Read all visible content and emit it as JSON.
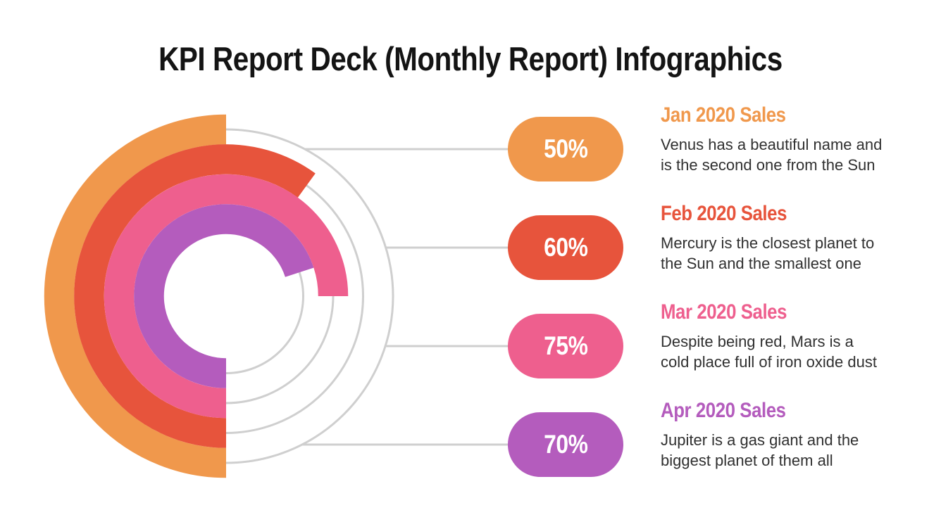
{
  "title": "KPI Report Deck (Monthly Report) Infographics",
  "colors": {
    "background": "#FFFFFF",
    "title_text": "#141414",
    "body_text": "#303030",
    "badge_text": "#FFFFFF",
    "track_gray": "#CFCFCF",
    "orange": "#F0984C",
    "red": "#E7543C",
    "pink": "#EE5F8E",
    "purple": "#B45CBD"
  },
  "chart_data": {
    "type": "radial-progress",
    "unit": "%",
    "legend_position": "right",
    "track_color": "#CFCFCF",
    "categories": [
      "Jan 2020 Sales",
      "Feb 2020 Sales",
      "Mar 2020 Sales",
      "Apr 2020 Sales"
    ],
    "values": [
      50,
      60,
      75,
      70
    ],
    "ring_order": "Jan outermost ring, Apr innermost ring; arcs start at bottom (6 o'clock) and sweep clockwise through the left side",
    "series": [
      {
        "label": "Jan 2020 Sales",
        "value_pct": 50,
        "badge": "50%",
        "color": "#F0984C",
        "desc_line1": "Venus has a beautiful name and",
        "desc_line2": "is the second one from the Sun"
      },
      {
        "label": "Feb 2020 Sales",
        "value_pct": 60,
        "badge": "60%",
        "color": "#E7543C",
        "desc_line1": "Mercury is the closest planet to",
        "desc_line2": "the Sun and the smallest one"
      },
      {
        "label": "Mar 2020 Sales",
        "value_pct": 75,
        "badge": "75%",
        "color": "#EE5F8E",
        "desc_line1": "Despite being red, Mars is a",
        "desc_line2": "cold place full of iron oxide dust"
      },
      {
        "label": "Apr 2020 Sales",
        "value_pct": 70,
        "badge": "70%",
        "color": "#B45CBD",
        "desc_line1": "Jupiter is a gas giant and the",
        "desc_line2": "biggest planet of them all"
      }
    ]
  }
}
